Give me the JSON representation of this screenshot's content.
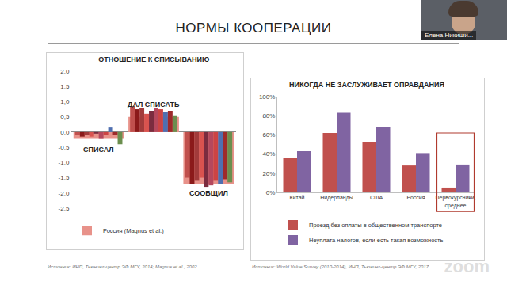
{
  "slide": {
    "title": "НОРМЫ КООПЕРАЦИИ",
    "presenter": "Елена Никиши...",
    "watermark": "zoom"
  },
  "chart_data": [
    {
      "type": "bar",
      "title": "ОТНОШЕНИЕ К СПИСЫВАНИЮ",
      "categories": [
        "СПИСАЛ",
        "ДАЛ СПИСАТЬ",
        "СООБЩИЛ"
      ],
      "series": [
        {
          "name": "Россия (Magnus et al.)",
          "color": "#e8928a",
          "values": [
            -0.2,
            0.5,
            -1.7
          ]
        },
        {
          "color": "#c0504d",
          "values": [
            -0.1,
            0.85,
            -1.5
          ]
        },
        {
          "color": "#8b1a1a",
          "values": [
            -0.15,
            0.75,
            -1.7
          ]
        },
        {
          "color": "#a23b3b",
          "values": [
            -0.1,
            0.8,
            -1.6
          ]
        },
        {
          "color": "#d9534f",
          "values": [
            -0.15,
            0.6,
            -1.5
          ]
        },
        {
          "color": "#7b2c3f",
          "values": [
            -0.05,
            0.7,
            -1.8
          ]
        },
        {
          "color": "#b5485d",
          "values": [
            -0.2,
            0.8,
            -1.75
          ]
        },
        {
          "color": "#cc4444",
          "values": [
            -0.1,
            0.75,
            -1.6
          ]
        },
        {
          "color": "#4f6fb0",
          "values": [
            0.15,
            0.65,
            -1.7
          ]
        },
        {
          "color": "#9e2a2b",
          "values": [
            -0.1,
            0.7,
            -1.55
          ]
        },
        {
          "color": "#6b8e4e",
          "values": [
            -0.4,
            0.55,
            -1.65
          ]
        }
      ],
      "ylim": [
        -2.5,
        2
      ],
      "yticks": [
        {
          "value": 2,
          "label": "2,0"
        },
        {
          "value": 1.5,
          "label": "1,5"
        },
        {
          "value": 1,
          "label": "1,0"
        },
        {
          "value": 0.5,
          "label": "0,5"
        },
        {
          "value": 0,
          "label": "0,0"
        },
        {
          "value": -0.5,
          "label": "-0,5"
        },
        {
          "value": -1,
          "label": "-1,0"
        },
        {
          "value": -1.5,
          "label": "-1,5"
        },
        {
          "value": -2,
          "label": "-2,0"
        },
        {
          "value": -2.5,
          "label": "-2,5"
        }
      ],
      "grid": false,
      "legend": "bottom",
      "tick_labels": "y",
      "source": "Источник: ИНП, Тьюнинг-центр ЭФ МГУ, 2014; Magnus et al., 2002"
    },
    {
      "type": "bar",
      "title": "НИКОГДА НЕ ЗАСЛУЖИВАЕТ ОПРАВДАНИЯ",
      "categories": [
        "Китай",
        "Нидерланды",
        "США",
        "Россия",
        "Первокурсники, среднее"
      ],
      "series": [
        {
          "name": "Проезд без оплаты в общественном транспорте",
          "color": "#c0504d",
          "values": [
            36,
            62,
            52,
            28,
            5
          ]
        },
        {
          "name": "Неуплата налогов, если есть такая возможность",
          "color": "#8064a2",
          "values": [
            43,
            83,
            68,
            41,
            29
          ]
        }
      ],
      "ylim": [
        0,
        100
      ],
      "yticks": [
        {
          "value": 0,
          "label": "0%"
        },
        {
          "value": 20,
          "label": "20%"
        },
        {
          "value": 40,
          "label": "40%"
        },
        {
          "value": 60,
          "label": "60%"
        },
        {
          "value": 80,
          "label": "80%"
        },
        {
          "value": 100,
          "label": "100%"
        }
      ],
      "grid": true,
      "legend": "bottom",
      "source": "Источник: World Value Survey (2010-2014), ИНП, Тьюнинг-центр ЭФ МГУ, 2017"
    }
  ]
}
